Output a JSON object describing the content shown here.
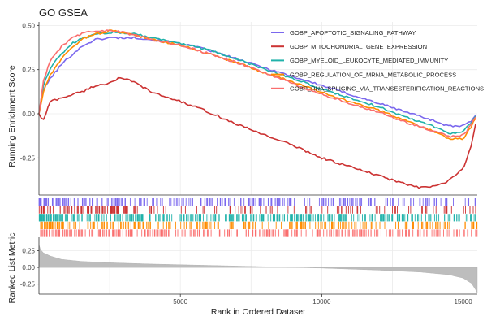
{
  "chart_data": {
    "type": "line",
    "title": "GO GSEA",
    "xlabel": "Rank in Ordered Dataset",
    "ylabel_top": "Running Enrichment Score",
    "ylabel_bottom": "Ranked List Metric",
    "xlim": [
      0,
      15500
    ],
    "x_ticks": [
      5000,
      10000,
      15000
    ],
    "x_tick_labels": [
      "5000",
      "10000",
      "15000"
    ],
    "es_ylim": [
      -0.46,
      0.52
    ],
    "es_ticks": [
      0.5,
      0.25,
      0.0,
      -0.25
    ],
    "es_tick_labels": [
      "0.50",
      "0.25",
      "0.00",
      "-0.25"
    ],
    "metric_ylim": [
      -0.4,
      0.45
    ],
    "metric_ticks": [
      0.25,
      0.0,
      -0.25
    ],
    "metric_tick_labels": [
      "0.25",
      "0.00",
      "-0.25"
    ],
    "grid": true,
    "legend_position": "top-right",
    "series": [
      {
        "name": "GOBP_APOPTOTIC_SIGNALING_PATHWAY",
        "color": "#7B68EE",
        "points": [
          [
            0,
            0.0
          ],
          [
            150,
            0.13
          ],
          [
            400,
            0.2
          ],
          [
            800,
            0.28
          ],
          [
            1200,
            0.34
          ],
          [
            1600,
            0.39
          ],
          [
            2000,
            0.42
          ],
          [
            2500,
            0.43
          ],
          [
            3000,
            0.43
          ],
          [
            3500,
            0.43
          ],
          [
            4000,
            0.42
          ],
          [
            5000,
            0.4
          ],
          [
            6000,
            0.36
          ],
          [
            7000,
            0.31
          ],
          [
            8000,
            0.26
          ],
          [
            9000,
            0.21
          ],
          [
            10000,
            0.16
          ],
          [
            11000,
            0.11
          ],
          [
            12000,
            0.06
          ],
          [
            13000,
            0.01
          ],
          [
            13800,
            -0.03
          ],
          [
            14500,
            -0.07
          ],
          [
            15000,
            -0.07
          ],
          [
            15300,
            -0.04
          ],
          [
            15500,
            0.0
          ]
        ]
      },
      {
        "name": "GOBP_MITOCHONDRIAL_GENE_EXPRESSION",
        "color": "#CC3333",
        "points": [
          [
            0,
            0.0
          ],
          [
            150,
            -0.04
          ],
          [
            400,
            0.07
          ],
          [
            800,
            0.09
          ],
          [
            1200,
            0.11
          ],
          [
            1600,
            0.13
          ],
          [
            2000,
            0.16
          ],
          [
            2400,
            0.17
          ],
          [
            2800,
            0.2
          ],
          [
            3200,
            0.19
          ],
          [
            3600,
            0.16
          ],
          [
            4000,
            0.12
          ],
          [
            5000,
            0.07
          ],
          [
            6000,
            0.01
          ],
          [
            7000,
            -0.06
          ],
          [
            8000,
            -0.12
          ],
          [
            9000,
            -0.18
          ],
          [
            10000,
            -0.25
          ],
          [
            11000,
            -0.3
          ],
          [
            12000,
            -0.35
          ],
          [
            13000,
            -0.4
          ],
          [
            13500,
            -0.42
          ],
          [
            14000,
            -0.41
          ],
          [
            14500,
            -0.38
          ],
          [
            15000,
            -0.31
          ],
          [
            15300,
            -0.18
          ],
          [
            15500,
            0.0
          ]
        ]
      },
      {
        "name": "GOBP_MYELOID_LEUKOCYTE_MEDIATED_IMMUNITY",
        "color": "#20B2AA",
        "points": [
          [
            0,
            0.0
          ],
          [
            150,
            0.16
          ],
          [
            400,
            0.26
          ],
          [
            800,
            0.34
          ],
          [
            1200,
            0.4
          ],
          [
            1600,
            0.43
          ],
          [
            2000,
            0.45
          ],
          [
            2500,
            0.46
          ],
          [
            3000,
            0.46
          ],
          [
            3500,
            0.45
          ],
          [
            4000,
            0.43
          ],
          [
            5000,
            0.4
          ],
          [
            6000,
            0.36
          ],
          [
            7000,
            0.31
          ],
          [
            8000,
            0.25
          ],
          [
            9000,
            0.2
          ],
          [
            10000,
            0.14
          ],
          [
            11000,
            0.09
          ],
          [
            12000,
            0.04
          ],
          [
            13000,
            -0.02
          ],
          [
            13800,
            -0.06
          ],
          [
            14500,
            -0.11
          ],
          [
            15000,
            -0.1
          ],
          [
            15300,
            -0.05
          ],
          [
            15500,
            0.0
          ]
        ]
      },
      {
        "name": "GOBP_REGULATION_OF_MRNA_METABOLIC_PROCESS",
        "color": "#FF8C00",
        "points": [
          [
            0,
            0.0
          ],
          [
            150,
            0.12
          ],
          [
            400,
            0.22
          ],
          [
            800,
            0.31
          ],
          [
            1200,
            0.38
          ],
          [
            1600,
            0.43
          ],
          [
            2000,
            0.45
          ],
          [
            2500,
            0.47
          ],
          [
            3000,
            0.46
          ],
          [
            3500,
            0.44
          ],
          [
            4000,
            0.42
          ],
          [
            5000,
            0.39
          ],
          [
            6000,
            0.34
          ],
          [
            7000,
            0.29
          ],
          [
            8000,
            0.23
          ],
          [
            9000,
            0.18
          ],
          [
            10000,
            0.12
          ],
          [
            11000,
            0.07
          ],
          [
            12000,
            0.02
          ],
          [
            13000,
            -0.04
          ],
          [
            13800,
            -0.09
          ],
          [
            14500,
            -0.14
          ],
          [
            15000,
            -0.14
          ],
          [
            15300,
            -0.07
          ],
          [
            15500,
            0.0
          ]
        ]
      },
      {
        "name": "GOBP_RNA_SPLICING_VIA_TRANSESTERIFICATION_REACTIONS",
        "color": "#FA6E6E",
        "points": [
          [
            0,
            0.0
          ],
          [
            150,
            0.18
          ],
          [
            400,
            0.3
          ],
          [
            800,
            0.38
          ],
          [
            1200,
            0.43
          ],
          [
            1600,
            0.46
          ],
          [
            2000,
            0.47
          ],
          [
            2500,
            0.47
          ],
          [
            3000,
            0.46
          ],
          [
            3500,
            0.44
          ],
          [
            4000,
            0.42
          ],
          [
            5000,
            0.39
          ],
          [
            6000,
            0.34
          ],
          [
            7000,
            0.29
          ],
          [
            8000,
            0.23
          ],
          [
            9000,
            0.17
          ],
          [
            10000,
            0.11
          ],
          [
            11000,
            0.06
          ],
          [
            12000,
            0.01
          ],
          [
            13000,
            -0.05
          ],
          [
            13800,
            -0.09
          ],
          [
            14500,
            -0.13
          ],
          [
            15000,
            -0.12
          ],
          [
            15300,
            -0.06
          ],
          [
            15500,
            0.0
          ]
        ]
      }
    ],
    "metric_curve": [
      [
        0,
        0.34
      ],
      [
        50,
        0.27
      ],
      [
        150,
        0.22
      ],
      [
        400,
        0.17
      ],
      [
        800,
        0.12
      ],
      [
        1500,
        0.09
      ],
      [
        2500,
        0.07
      ],
      [
        4000,
        0.05
      ],
      [
        6000,
        0.03
      ],
      [
        8000,
        0.01
      ],
      [
        10000,
        -0.01
      ],
      [
        12000,
        -0.04
      ],
      [
        13500,
        -0.07
      ],
      [
        14500,
        -0.11
      ],
      [
        15000,
        -0.16
      ],
      [
        15300,
        -0.24
      ],
      [
        15450,
        -0.34
      ],
      [
        15500,
        -0.38
      ]
    ]
  }
}
